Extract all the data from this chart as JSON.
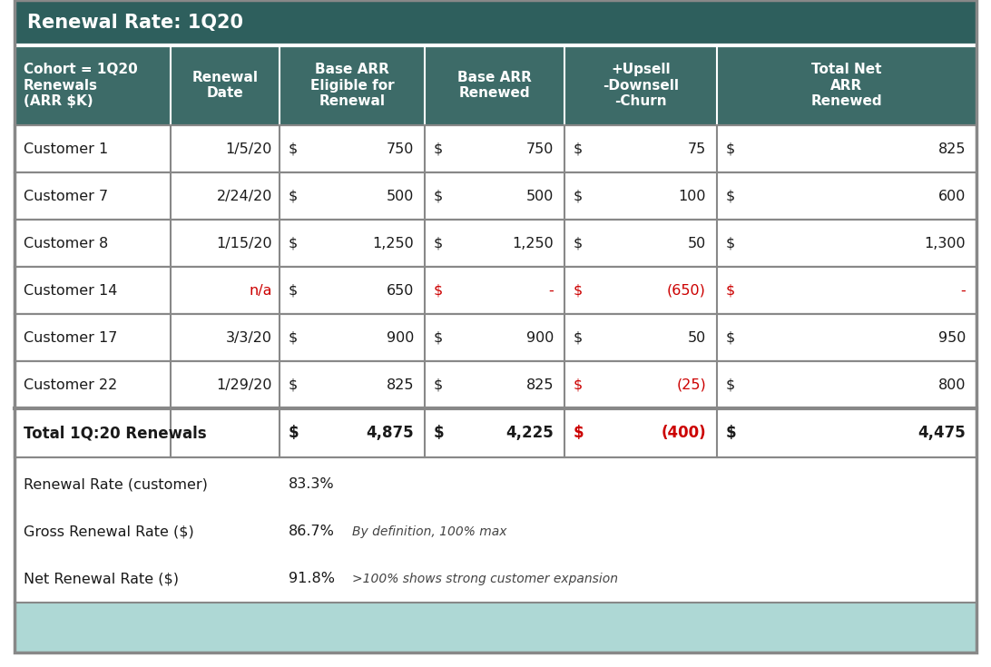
{
  "title": "Renewal Rate: 1Q20",
  "title_bg": "#2e5f5d",
  "title_color": "#ffffff",
  "header_bg": "#3d6b68",
  "header_color": "#ffffff",
  "col_headers": [
    "Cohort = 1Q20\nRenewals\n(ARR $K)",
    "Renewal\nDate",
    "Base ARR\nEligible for\nRenewal",
    "Base ARR\nRenewed",
    "+Upsell\n-Downsell\n-Churn",
    "Total Net\nARR\nRenewed"
  ],
  "rows": [
    [
      "Customer 1",
      "1/5/20",
      "$",
      "750",
      "$",
      "750",
      "$",
      "75",
      "$",
      "825"
    ],
    [
      "Customer 7",
      "2/24/20",
      "$",
      "500",
      "$",
      "500",
      "$",
      "100",
      "$",
      "600"
    ],
    [
      "Customer 8",
      "1/15/20",
      "$",
      "1,250",
      "$",
      "1,250",
      "$",
      "50",
      "$",
      "1,300"
    ],
    [
      "Customer 14",
      "n/a",
      "$",
      "650",
      "$",
      "-",
      "$",
      "(650)",
      "$",
      "-"
    ],
    [
      "Customer 17",
      "3/3/20",
      "$",
      "900",
      "$",
      "900",
      "$",
      "50",
      "$",
      "950"
    ],
    [
      "Customer 22",
      "1/29/20",
      "$",
      "825",
      "$",
      "825",
      "$",
      "(25)",
      "$",
      "800"
    ]
  ],
  "row14_red_cols": [
    1,
    4,
    5,
    6,
    7,
    8,
    9
  ],
  "row22_red_cols": [
    6,
    7
  ],
  "total_row": [
    "Total 1Q:20 Renewals",
    "",
    "$",
    "4,875",
    "$",
    "4,225",
    "$",
    "(400)",
    "$",
    "4,475"
  ],
  "total_red_cols": [
    6,
    7
  ],
  "summary_rows": [
    [
      "Renewal Rate (customer)",
      "83.3%",
      ""
    ],
    [
      "Gross Renewal Rate ($)",
      "86.7%",
      "By definition, 100% max"
    ],
    [
      "Net Renewal Rate ($)",
      "91.8%",
      ">100% shows strong customer expansion"
    ]
  ],
  "footer_bg": "#aed8d5",
  "border_color": "#888888",
  "text_black": "#1a1a1a",
  "text_red": "#cc0000",
  "note_color": "#555555"
}
